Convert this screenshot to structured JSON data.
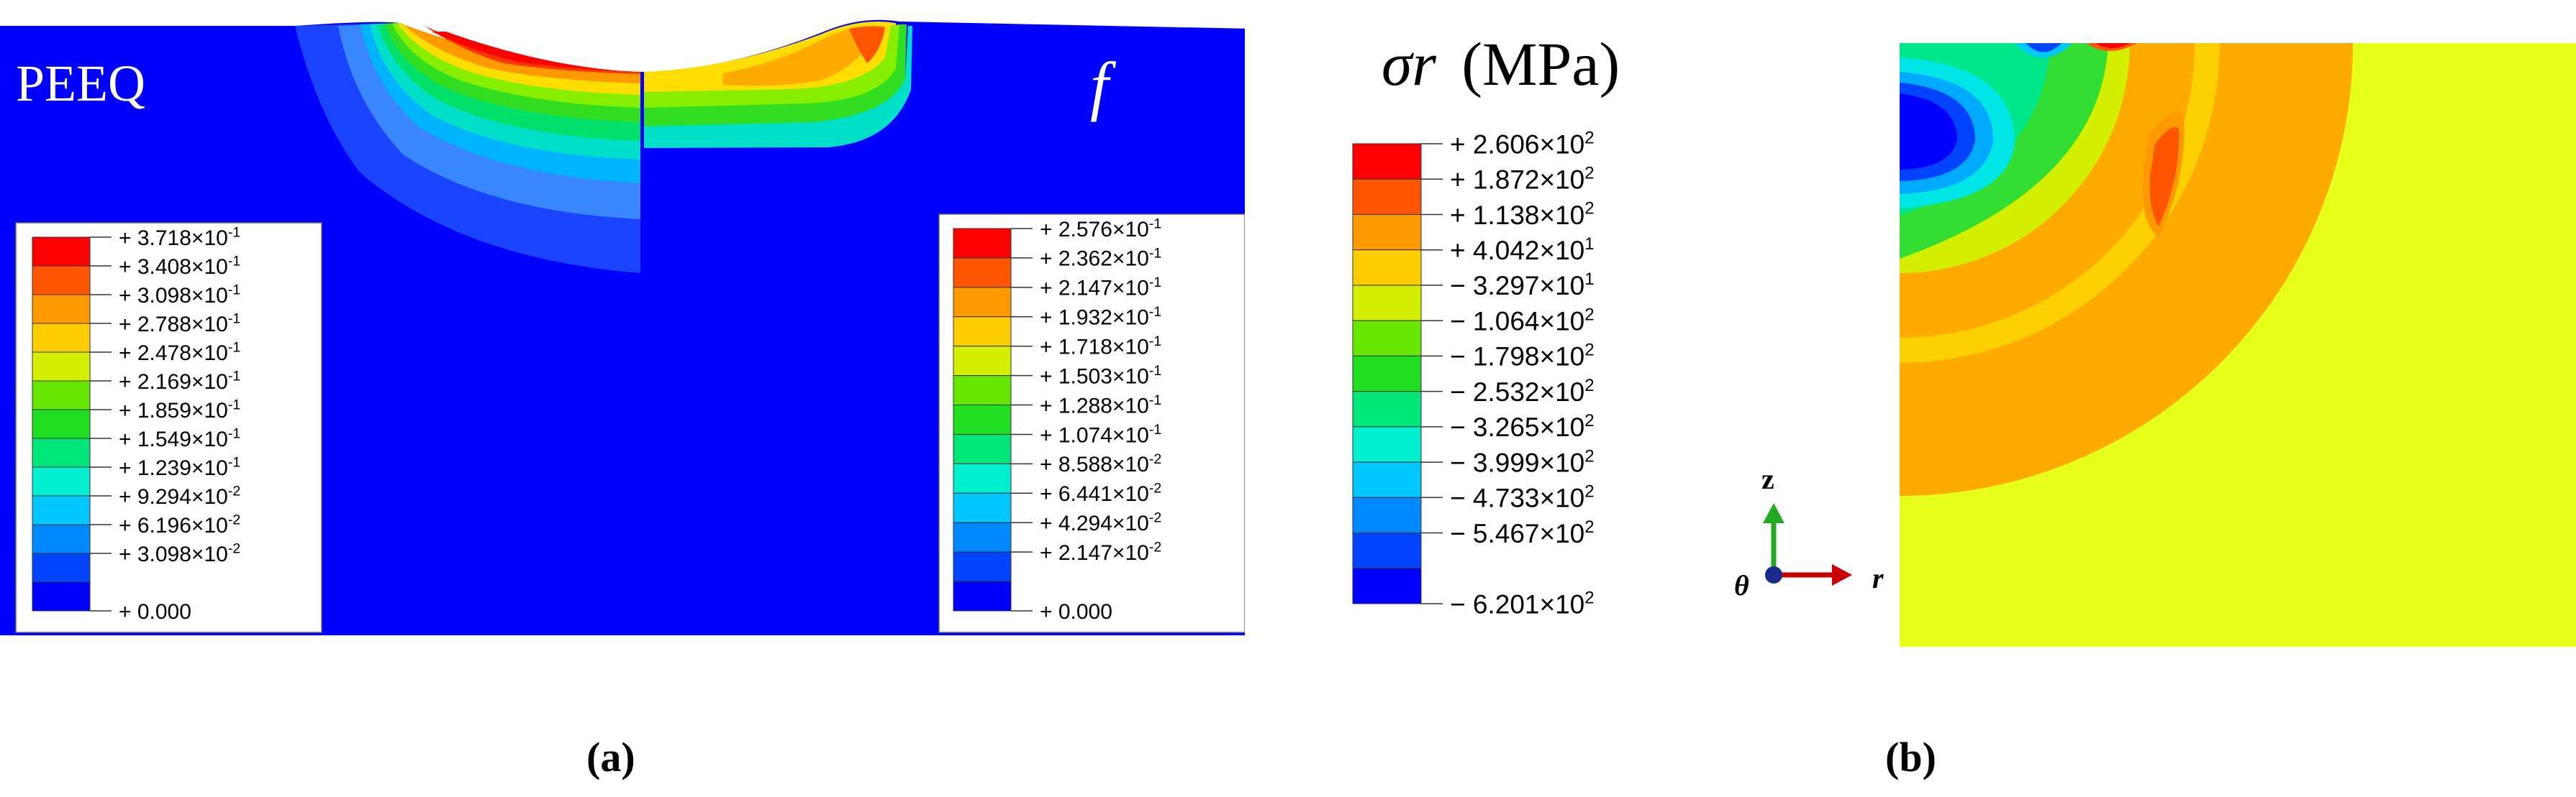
{
  "panel_a": {
    "left_label": "PEEQ",
    "right_label": "f",
    "left_legend": [
      {
        "sign": "+",
        "mant": "3.718",
        "exp": "-1",
        "color": "#ff0000"
      },
      {
        "sign": "+",
        "mant": "3.408",
        "exp": "-1",
        "color": "#ff5500"
      },
      {
        "sign": "+",
        "mant": "3.098",
        "exp": "-1",
        "color": "#ff9900"
      },
      {
        "sign": "+",
        "mant": "2.788",
        "exp": "-1",
        "color": "#ffcc00"
      },
      {
        "sign": "+",
        "mant": "2.478",
        "exp": "-1",
        "color": "#d4f000"
      },
      {
        "sign": "+",
        "mant": "2.169",
        "exp": "-1",
        "color": "#66e600"
      },
      {
        "sign": "+",
        "mant": "1.859",
        "exp": "-1",
        "color": "#22dd22"
      },
      {
        "sign": "+",
        "mant": "1.549",
        "exp": "-1",
        "color": "#00e67a"
      },
      {
        "sign": "+",
        "mant": "1.239",
        "exp": "-1",
        "color": "#00f0d0"
      },
      {
        "sign": "+",
        "mant": "9.294",
        "exp": "-2",
        "color": "#00c8ff"
      },
      {
        "sign": "+",
        "mant": "6.196",
        "exp": "-2",
        "color": "#0088ff"
      },
      {
        "sign": "+",
        "mant": "3.098",
        "exp": "-2",
        "color": "#0044ff"
      },
      {
        "sign": "+",
        "mant": "0.000",
        "exp": "",
        "color": "#0000ff"
      }
    ],
    "right_legend": [
      {
        "sign": "+",
        "mant": "2.576",
        "exp": "-1",
        "color": "#ff0000"
      },
      {
        "sign": "+",
        "mant": "2.362",
        "exp": "-1",
        "color": "#ff5500"
      },
      {
        "sign": "+",
        "mant": "2.147",
        "exp": "-1",
        "color": "#ff9900"
      },
      {
        "sign": "+",
        "mant": "1.932",
        "exp": "-1",
        "color": "#ffcc00"
      },
      {
        "sign": "+",
        "mant": "1.718",
        "exp": "-1",
        "color": "#d4f000"
      },
      {
        "sign": "+",
        "mant": "1.503",
        "exp": "-1",
        "color": "#66e600"
      },
      {
        "sign": "+",
        "mant": "1.288",
        "exp": "-1",
        "color": "#22dd22"
      },
      {
        "sign": "+",
        "mant": "1.074",
        "exp": "-1",
        "color": "#00e67a"
      },
      {
        "sign": "+",
        "mant": "8.588",
        "exp": "-2",
        "color": "#00f0d0"
      },
      {
        "sign": "+",
        "mant": "6.441",
        "exp": "-2",
        "color": "#00c8ff"
      },
      {
        "sign": "+",
        "mant": "4.294",
        "exp": "-2",
        "color": "#0088ff"
      },
      {
        "sign": "+",
        "mant": "2.147",
        "exp": "-2",
        "color": "#0044ff"
      },
      {
        "sign": "+",
        "mant": "0.000",
        "exp": "",
        "color": "#0000ff"
      }
    ],
    "caption": "(a)"
  },
  "panel_b": {
    "title_symbol": "σr",
    "title_unit": "(MPa)",
    "legend": [
      {
        "sign": "+",
        "mant": "2.606",
        "exp": "2",
        "color": "#ff0000"
      },
      {
        "sign": "+",
        "mant": "1.872",
        "exp": "2",
        "color": "#ff5500"
      },
      {
        "sign": "+",
        "mant": "1.138",
        "exp": "2",
        "color": "#ff9900"
      },
      {
        "sign": "+",
        "mant": "4.042",
        "exp": "1",
        "color": "#ffcc00"
      },
      {
        "sign": "−",
        "mant": "3.297",
        "exp": "1",
        "color": "#d4f000"
      },
      {
        "sign": "−",
        "mant": "1.064",
        "exp": "2",
        "color": "#66e600"
      },
      {
        "sign": "−",
        "mant": "1.798",
        "exp": "2",
        "color": "#22dd22"
      },
      {
        "sign": "−",
        "mant": "2.532",
        "exp": "2",
        "color": "#00e67a"
      },
      {
        "sign": "−",
        "mant": "3.265",
        "exp": "2",
        "color": "#00f0d0"
      },
      {
        "sign": "−",
        "mant": "3.999",
        "exp": "2",
        "color": "#00c8ff"
      },
      {
        "sign": "−",
        "mant": "4.733",
        "exp": "2",
        "color": "#0088ff"
      },
      {
        "sign": "−",
        "mant": "5.467",
        "exp": "2",
        "color": "#0044ff"
      },
      {
        "sign": "−",
        "mant": "6.201",
        "exp": "2",
        "color": "#0000ff"
      }
    ],
    "axis_z": "z",
    "axis_r": "r",
    "axis_theta": "θ",
    "caption": "(b)"
  },
  "colors": {
    "blue": "#0000ff",
    "yellow_green": "#e6ff1a",
    "orange": "#ffaa00",
    "green": "#33dd33",
    "red": "#ff0000"
  }
}
